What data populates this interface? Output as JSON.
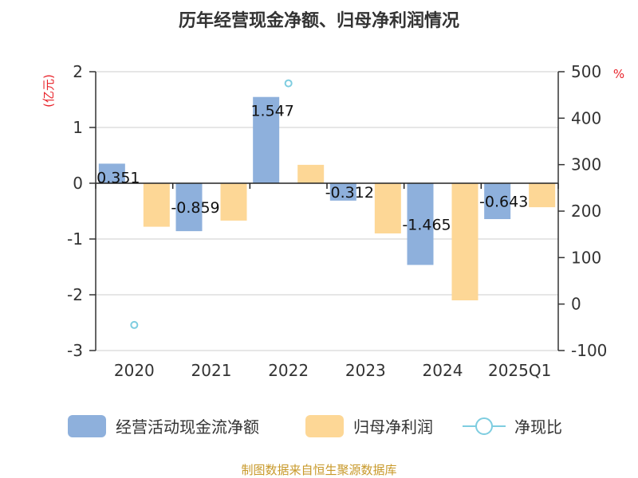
{
  "chart_data": {
    "type": "bar",
    "title": "历年经营现金净额、归母净利润情况",
    "categories": [
      "2020",
      "2021",
      "2022",
      "2023",
      "2024",
      "2025Q1"
    ],
    "left_axis": {
      "unit": "(亿元)",
      "ylim": [
        -3,
        2
      ],
      "ticks": [
        "2",
        "1",
        "0",
        "-1",
        "-2",
        "-3"
      ]
    },
    "right_axis": {
      "unit": "%",
      "ylim": [
        -100,
        500
      ],
      "ticks": [
        "500",
        "400",
        "300",
        "200",
        "100",
        "0",
        "-100"
      ]
    },
    "series": [
      {
        "name": "经营活动现金流净额",
        "type": "bar",
        "axis": "left",
        "color": "#8eb0dc",
        "values": [
          0.351,
          -0.859,
          1.547,
          -0.312,
          -1.465,
          -0.643
        ],
        "labels": [
          "0.351",
          "-0.859",
          "1.547",
          "-0.312",
          "-1.465",
          "-0.643"
        ]
      },
      {
        "name": "归母净利润",
        "type": "bar",
        "axis": "left",
        "color": "#fdd796",
        "values": [
          -0.78,
          -0.67,
          0.33,
          -0.9,
          -2.1,
          -0.43
        ]
      },
      {
        "name": "净现比",
        "type": "scatter",
        "axis": "right",
        "color": "#7ecde0",
        "values": [
          -45,
          null,
          475,
          null,
          null,
          null
        ]
      }
    ],
    "grid": true,
    "legend_position": "bottom"
  },
  "source": "制图数据来自恒生聚源数据库"
}
